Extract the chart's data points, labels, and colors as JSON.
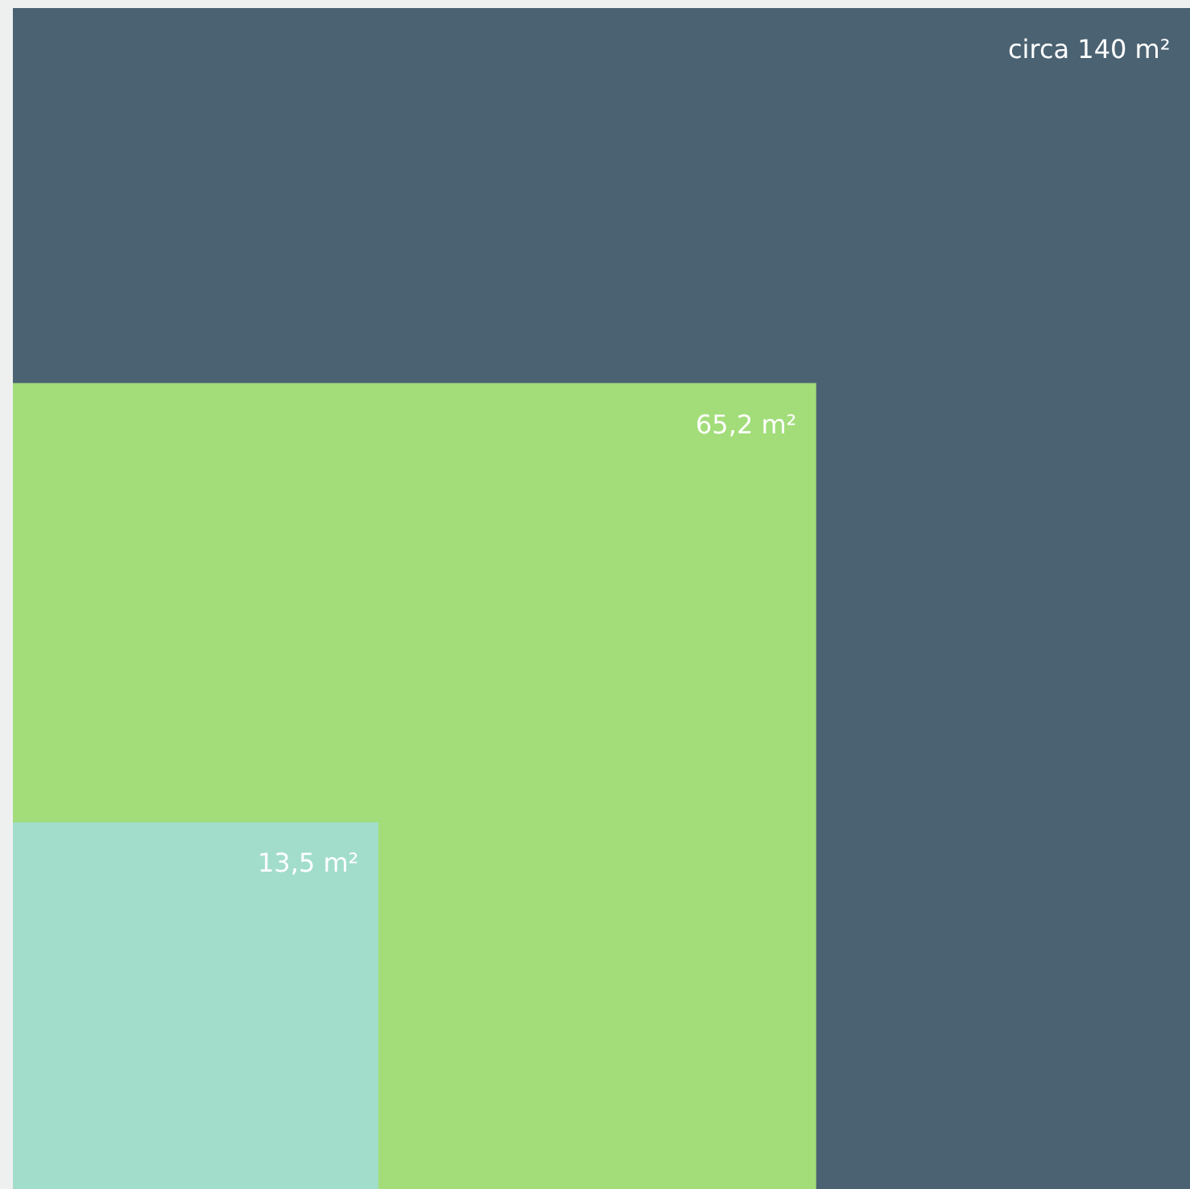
{
  "chart_data": {
    "type": "other",
    "categories": [
      null,
      null,
      null
    ],
    "values": [
      140,
      65.2,
      13.5
    ],
    "value_labels": [
      "circa 140 m²",
      "65,2 m²",
      "13,5 m²"
    ],
    "colors": [
      "#4b6272",
      "#a2dd7a",
      "#a2ddcb"
    ]
  }
}
